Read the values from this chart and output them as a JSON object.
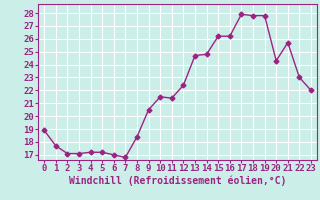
{
  "x": [
    0,
    1,
    2,
    3,
    4,
    5,
    6,
    7,
    8,
    9,
    10,
    11,
    12,
    13,
    14,
    15,
    16,
    17,
    18,
    19,
    20,
    21,
    22,
    23
  ],
  "y": [
    18.9,
    17.7,
    17.1,
    17.1,
    17.2,
    17.2,
    17.0,
    16.8,
    18.4,
    20.5,
    21.5,
    21.4,
    22.4,
    24.7,
    24.8,
    26.2,
    26.2,
    27.9,
    27.8,
    27.8,
    24.3,
    25.7,
    23.0,
    22.0
  ],
  "line_color": "#9b2482",
  "marker": "D",
  "markersize": 2.5,
  "linewidth": 1,
  "bg_plot": "#cceee8",
  "bg_fig": "#cceee8",
  "grid_color": "#ffffff",
  "xlabel": "Windchill (Refroidissement éolien,°C)",
  "xlabel_color": "#9b2482",
  "xlabel_fontsize": 7,
  "xtick_labels": [
    "0",
    "1",
    "2",
    "3",
    "4",
    "5",
    "6",
    "7",
    "8",
    "9",
    "10",
    "11",
    "12",
    "13",
    "14",
    "15",
    "16",
    "17",
    "18",
    "19",
    "20",
    "21",
    "22",
    "23"
  ],
  "ytick_min": 17,
  "ytick_max": 28,
  "ytick_step": 1,
  "tick_color": "#9b2482",
  "tick_fontsize": 6.5,
  "ylim": [
    16.6,
    28.7
  ],
  "xlim": [
    -0.5,
    23.5
  ]
}
